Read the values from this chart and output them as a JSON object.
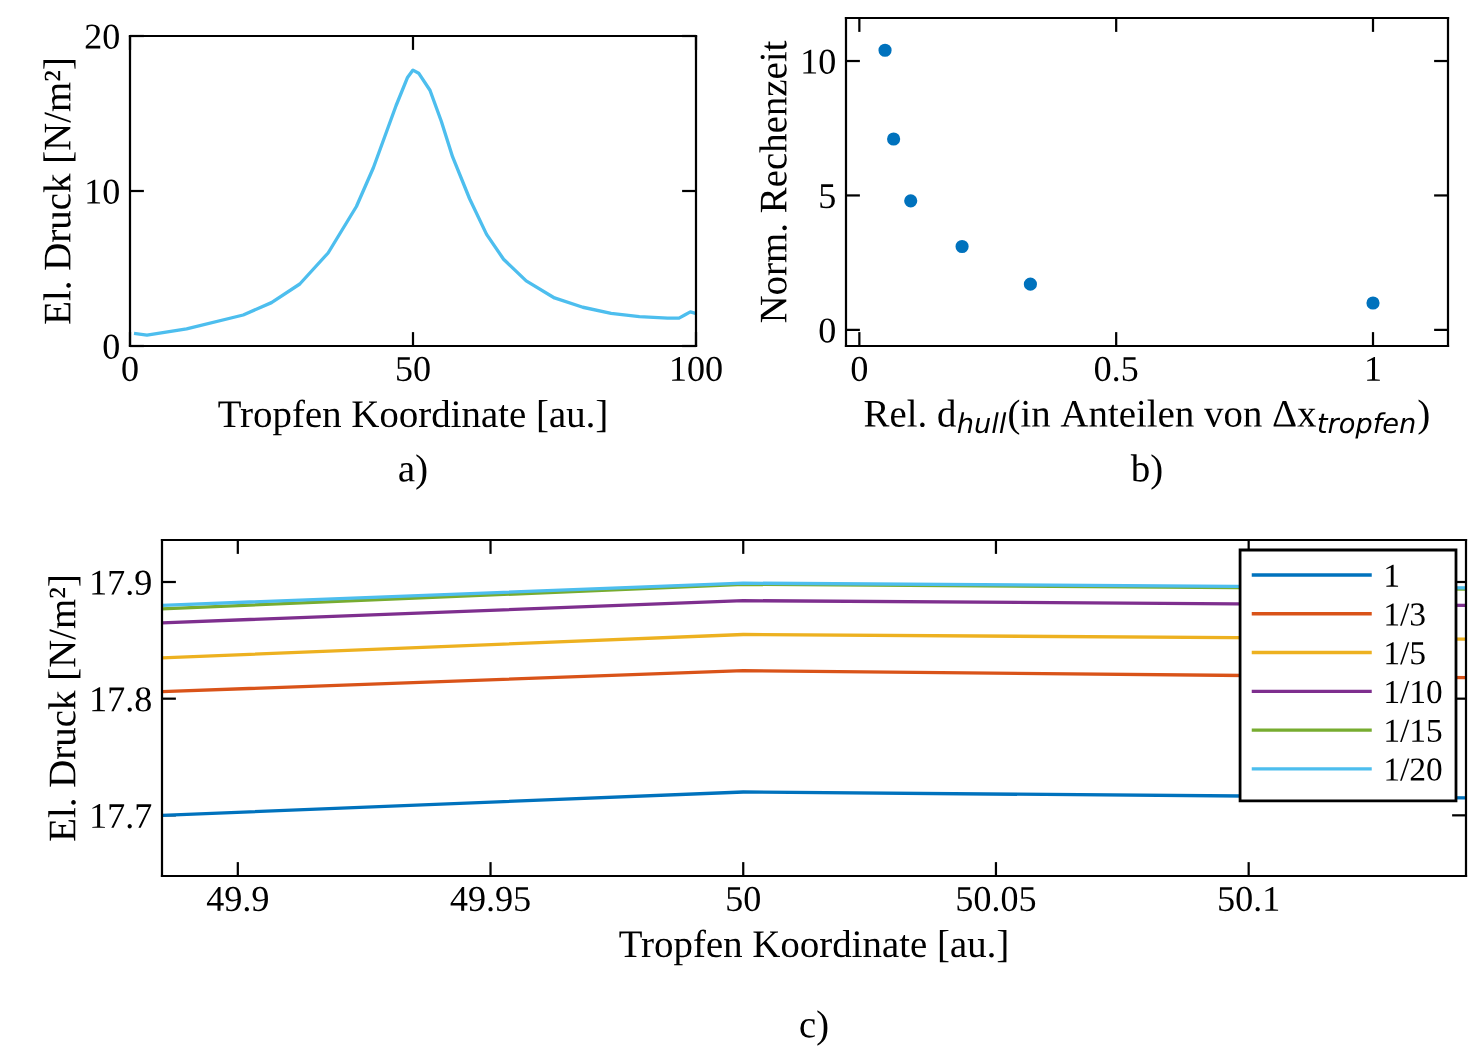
{
  "chart_data": [
    {
      "type": "line",
      "xlabel": "Tropfen Koordinate [au.]",
      "ylabel": "El. Druck [N/m²]",
      "annotations": [
        "a)"
      ],
      "xlim": [
        0,
        100
      ],
      "ylim": [
        0,
        20
      ],
      "xticks": [
        0,
        50,
        100
      ],
      "yticks": [
        0,
        10,
        20
      ],
      "grid": false,
      "legend": false,
      "series": [
        {
          "color": "#4dbeee",
          "x": [
            1,
            3,
            10,
            20,
            25,
            30,
            35,
            40,
            43,
            45,
            47,
            49,
            50,
            51,
            53,
            55,
            57,
            60,
            63,
            66,
            70,
            75,
            80,
            85,
            90,
            95,
            97,
            98,
            99,
            100
          ],
          "values": [
            0.8,
            0.7,
            1.1,
            2.0,
            2.8,
            4.0,
            6.0,
            9.0,
            11.5,
            13.5,
            15.5,
            17.3,
            17.8,
            17.6,
            16.5,
            14.5,
            12.2,
            9.5,
            7.2,
            5.6,
            4.2,
            3.1,
            2.5,
            2.1,
            1.9,
            1.8,
            1.8,
            2.0,
            2.2,
            2.1
          ]
        }
      ]
    },
    {
      "type": "scatter",
      "xlabel": "Rel. d$_{hull}$(in Anteilen von Δx$_{tropfen}$)",
      "ylabel": "Norm. Rechenzeit",
      "annotations": [
        "b)"
      ],
      "xlim": [
        -0.026,
        1.146
      ],
      "ylim": [
        -0.6,
        11.6
      ],
      "xticks": [
        0,
        0.5,
        1
      ],
      "yticks": [
        0,
        5,
        10
      ],
      "grid": false,
      "legend": false,
      "marker": "circle",
      "series": [
        {
          "color": "#0072bd",
          "x": [
            0.05,
            0.0667,
            0.1,
            0.2,
            0.333,
            1
          ],
          "values": [
            10.4,
            7.1,
            4.8,
            3.1,
            1.7,
            1.0
          ]
        }
      ]
    },
    {
      "type": "line",
      "xlabel": "Tropfen Koordinate [au.]",
      "ylabel": "El. Druck [N/m²]",
      "annotations": [
        "c)"
      ],
      "xlim": [
        49.885,
        50.143
      ],
      "ylim": [
        17.648,
        17.936
      ],
      "xticks": [
        49.9,
        49.95,
        50,
        50.05,
        50.1
      ],
      "yticks": [
        17.7,
        17.8,
        17.9
      ],
      "grid": false,
      "legend": "top right",
      "x": [
        49.885,
        50,
        50.143
      ],
      "series": [
        {
          "name": "1",
          "color": "#0072bd",
          "values": [
            17.7,
            17.72,
            17.715
          ]
        },
        {
          "name": "1/3",
          "color": "#d95319",
          "values": [
            17.806,
            17.824,
            17.818
          ]
        },
        {
          "name": "1/5",
          "color": "#edb120",
          "values": [
            17.835,
            17.855,
            17.851
          ]
        },
        {
          "name": "1/10",
          "color": "#7e2f8e",
          "values": [
            17.865,
            17.884,
            17.88
          ]
        },
        {
          "name": "1/15",
          "color": "#77ac30",
          "values": [
            17.877,
            17.898,
            17.894
          ]
        },
        {
          "name": "1/20",
          "color": "#4dbeee",
          "values": [
            17.88,
            17.899,
            17.895
          ]
        }
      ]
    }
  ]
}
